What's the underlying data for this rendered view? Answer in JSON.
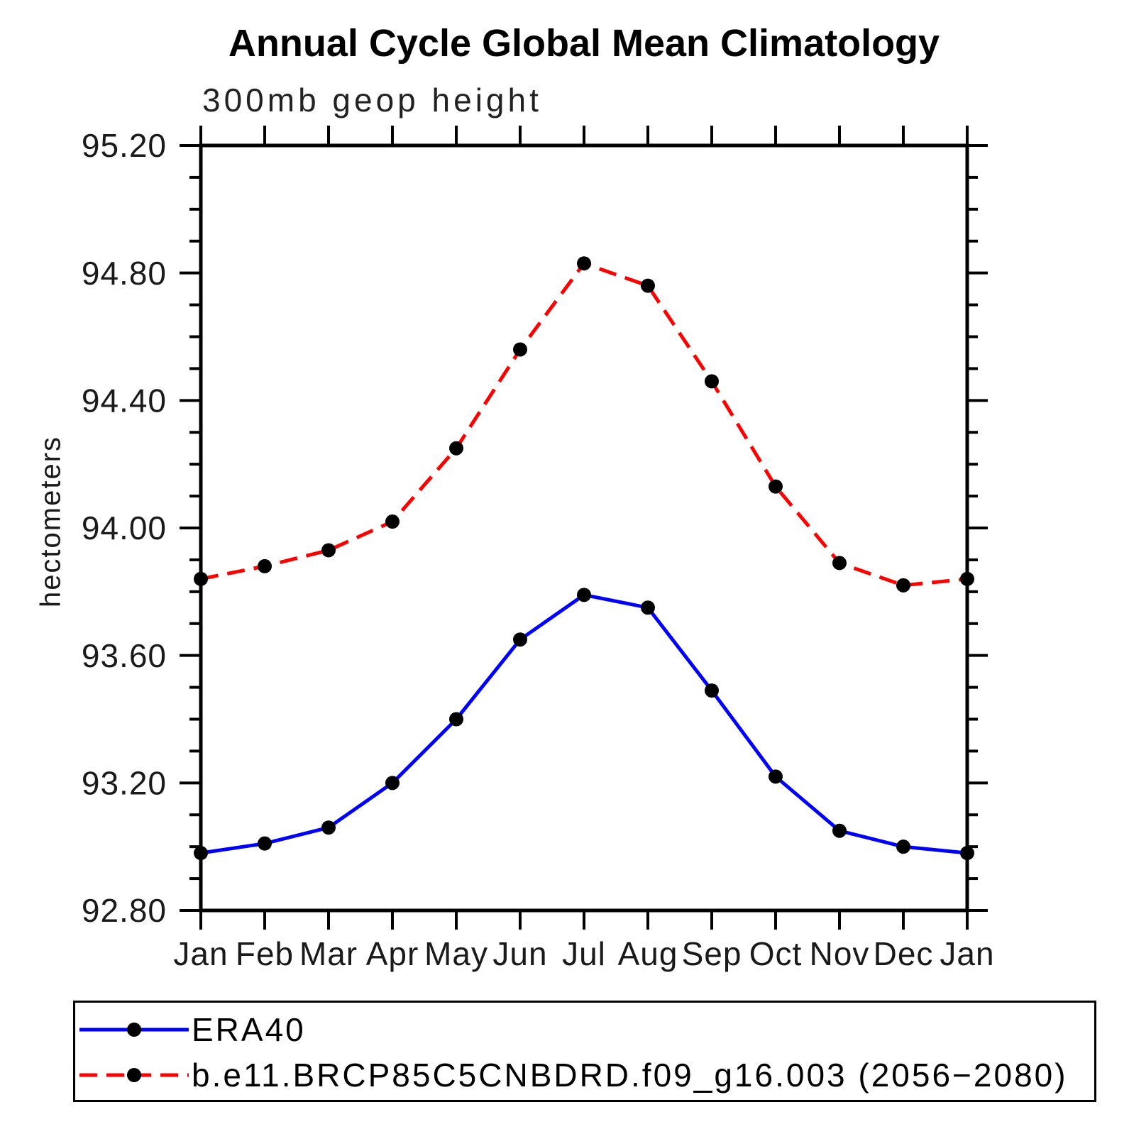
{
  "title": "Annual Cycle Global Mean Climatology",
  "subtitle": "300mb geop height",
  "y_axis": {
    "label": "hectometers",
    "tick_labels": [
      "95.20",
      "94.80",
      "94.40",
      "94.00",
      "93.60",
      "93.20",
      "92.80"
    ]
  },
  "x_axis": {
    "tick_labels": [
      "Jan",
      "Feb",
      "Mar",
      "Apr",
      "May",
      "Jun",
      "Jul",
      "Aug",
      "Sep",
      "Oct",
      "Nov",
      "Dec",
      "Jan"
    ]
  },
  "colors": {
    "era40_line": "#0000ff",
    "model_line": "#ff0000",
    "marker": "#000000",
    "axis": "#000000",
    "tick_text": "#1a1a1a"
  },
  "legend": {
    "entries": [
      {
        "label": "ERA40",
        "color": "#0000ff",
        "line_style": "solid"
      },
      {
        "label": "b.e11.BRCP85C5CNBDRD.f09_g16.003 (2056−2080)",
        "color": "#ff0000",
        "line_style": "dashed"
      }
    ]
  },
  "chart_data": {
    "type": "line",
    "title": "Annual Cycle Global Mean Climatology",
    "subtitle": "300mb geop height",
    "xlabel": "",
    "ylabel": "hectometers",
    "categories": [
      "Jan",
      "Feb",
      "Mar",
      "Apr",
      "May",
      "Jun",
      "Jul",
      "Aug",
      "Sep",
      "Oct",
      "Nov",
      "Dec",
      "Jan"
    ],
    "ylim": [
      92.8,
      95.2
    ],
    "ytick_interval": 0.4,
    "yminor_interval": 0.1,
    "y_tick_labels": [
      "95.20",
      "94.80",
      "94.40",
      "94.00",
      "93.60",
      "93.20",
      "92.80"
    ],
    "grid": false,
    "legend_position": "below-left",
    "marker": "filled-circle",
    "series": [
      {
        "name": "ERA40",
        "color": "#0000ff",
        "line_style": "solid",
        "values": [
          92.98,
          93.01,
          93.06,
          93.2,
          93.4,
          93.65,
          93.79,
          93.75,
          93.49,
          93.22,
          93.05,
          93.0,
          92.98
        ]
      },
      {
        "name": "b.e11.BRCP85C5CNBDRD.f09_g16.003 (2056−2080)",
        "color": "#ff0000",
        "line_style": "dashed",
        "values": [
          93.84,
          93.88,
          93.93,
          94.02,
          94.25,
          94.56,
          94.83,
          94.76,
          94.46,
          94.13,
          93.89,
          93.82,
          93.84
        ]
      }
    ]
  }
}
